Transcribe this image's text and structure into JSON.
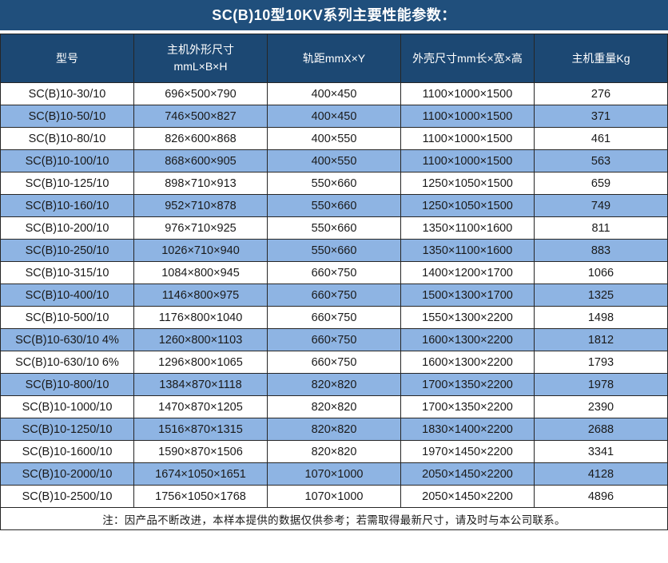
{
  "title": "SC(B)10型10KV系列主要性能参数：",
  "colors": {
    "title_bg": "#204F7C",
    "header_bg": "#1C4873",
    "row_bg": "#FFFFFF",
    "row_alt_bg": "#8EB4E3",
    "border": "#262626",
    "header_text": "#FFFFFF",
    "body_text": "#1A1A1A"
  },
  "table": {
    "columns": [
      {
        "key": "model",
        "label": "型号"
      },
      {
        "key": "body-size",
        "label": "主机外形尺寸\nmmL×B×H"
      },
      {
        "key": "rail-gauge",
        "label": "轨距mmX×Y"
      },
      {
        "key": "shell-size",
        "label": "外壳尺寸mm长×宽×高"
      },
      {
        "key": "weight",
        "label": "主机重量Kg"
      }
    ],
    "rows": [
      [
        "SC(B)10-30/10",
        "696×500×790",
        "400×450",
        "1100×1000×1500",
        "276"
      ],
      [
        "SC(B)10-50/10",
        "746×500×827",
        "400×450",
        "1100×1000×1500",
        "371"
      ],
      [
        "SC(B)10-80/10",
        "826×600×868",
        "400×550",
        "1100×1000×1500",
        "461"
      ],
      [
        "SC(B)10-100/10",
        "868×600×905",
        "400×550",
        "1100×1000×1500",
        "563"
      ],
      [
        "SC(B)10-125/10",
        "898×710×913",
        "550×660",
        "1250×1050×1500",
        "659"
      ],
      [
        "SC(B)10-160/10",
        "952×710×878",
        "550×660",
        "1250×1050×1500",
        "749"
      ],
      [
        "SC(B)10-200/10",
        "976×710×925",
        "550×660",
        "1350×1100×1600",
        "811"
      ],
      [
        "SC(B)10-250/10",
        "1026×710×940",
        "550×660",
        "1350×1100×1600",
        "883"
      ],
      [
        "SC(B)10-315/10",
        "1084×800×945",
        "660×750",
        "1400×1200×1700",
        "1066"
      ],
      [
        "SC(B)10-400/10",
        "1146×800×975",
        "660×750",
        "1500×1300×1700",
        "1325"
      ],
      [
        "SC(B)10-500/10",
        "1176×800×1040",
        "660×750",
        "1550×1300×2200",
        "1498"
      ],
      [
        "SC(B)10-630/10 4%",
        "1260×800×1103",
        "660×750",
        "1600×1300×2200",
        "1812"
      ],
      [
        "SC(B)10-630/10 6%",
        "1296×800×1065",
        "660×750",
        "1600×1300×2200",
        "1793"
      ],
      [
        "SC(B)10-800/10",
        "1384×870×1118",
        "820×820",
        "1700×1350×2200",
        "1978"
      ],
      [
        "SC(B)10-1000/10",
        "1470×870×1205",
        "820×820",
        "1700×1350×2200",
        "2390"
      ],
      [
        "SC(B)10-1250/10",
        "1516×870×1315",
        "820×820",
        "1830×1400×2200",
        "2688"
      ],
      [
        "SC(B)10-1600/10",
        "1590×870×1506",
        "820×820",
        "1970×1450×2200",
        "3341"
      ],
      [
        "SC(B)10-2000/10",
        "1674×1050×1651",
        "1070×1000",
        "2050×1450×2200",
        "4128"
      ],
      [
        "SC(B)10-2500/10",
        "1756×1050×1768",
        "1070×1000",
        "2050×1450×2200",
        "4896"
      ]
    ]
  },
  "footnote": "注：因产品不断改进，本样本提供的数据仅供参考；若需取得最新尺寸，请及时与本公司联系。"
}
